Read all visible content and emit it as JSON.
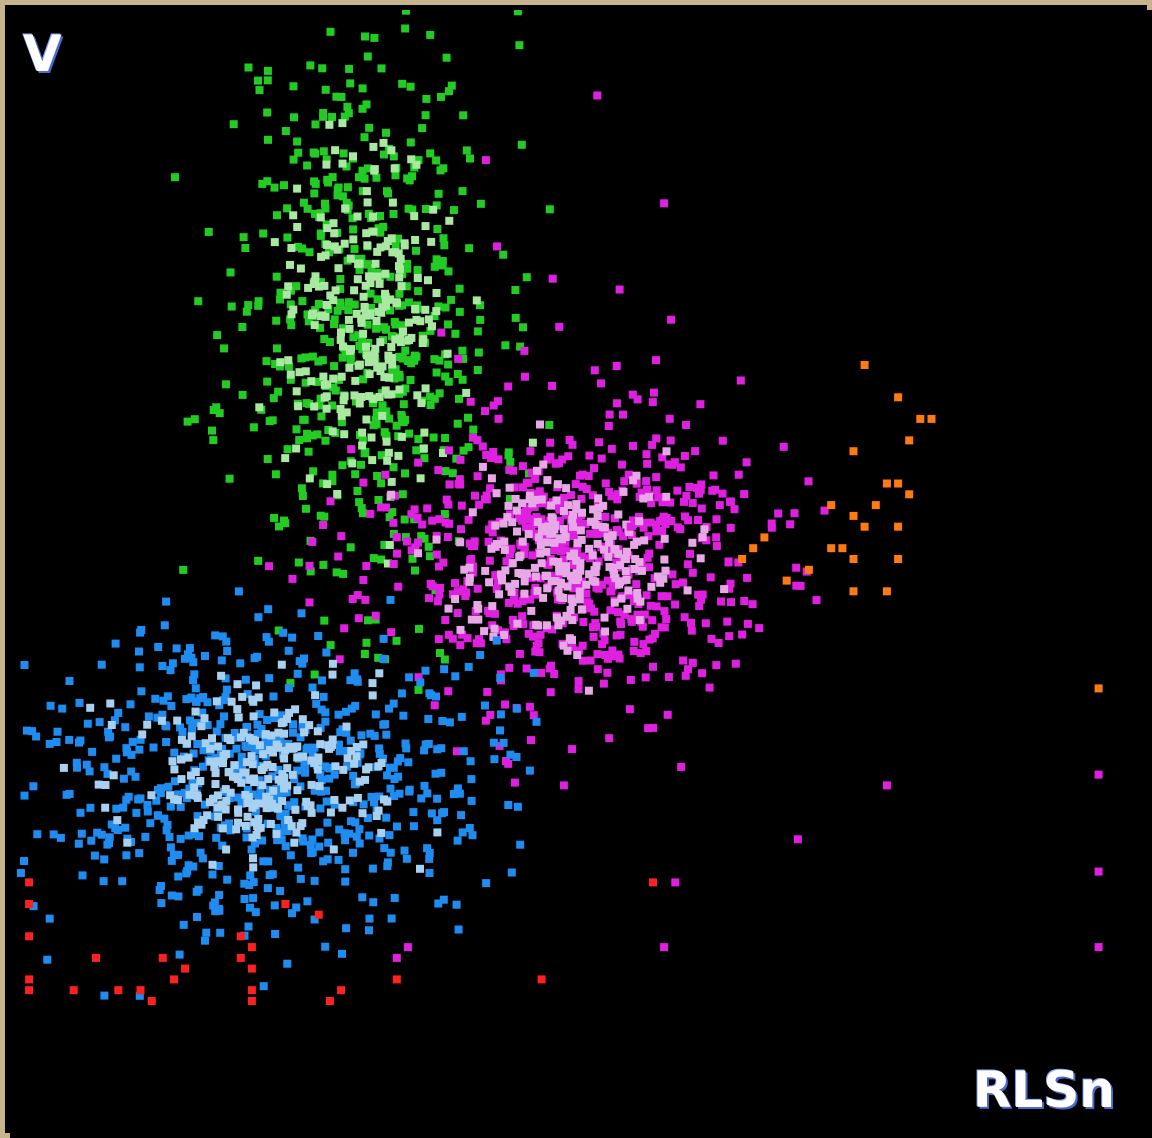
{
  "chart_data": {
    "type": "scatter",
    "title": "",
    "xlabel": "RLSn",
    "ylabel": "V",
    "xlim": [
      0,
      100
    ],
    "ylim": [
      0,
      100
    ],
    "grid": false,
    "legend": "none",
    "background": "#000000",
    "series": [
      {
        "color": "#22cc22",
        "core_color": "#a8e8a0",
        "pattern": "cloud",
        "center": [
          31,
          73
        ],
        "spread": [
          6,
          14
        ],
        "count": 520,
        "core_fraction": 0.45,
        "seed": 11
      },
      {
        "color": "#e020e0",
        "core_color": "#e8a8e8",
        "pattern": "cloud",
        "center": [
          49,
          50
        ],
        "spread": [
          9,
          7
        ],
        "count": 620,
        "core_fraction": 0.4,
        "seed": 23
      },
      {
        "color": "#1e8cf0",
        "core_color": "#a8d0f0",
        "pattern": "cloud",
        "center": [
          22,
          30
        ],
        "spread": [
          10,
          7
        ],
        "count": 620,
        "core_fraction": 0.4,
        "seed": 37
      },
      {
        "color": "#ff7a10",
        "pattern": "points",
        "points": [
          [
            76,
            68
          ],
          [
            79,
            65
          ],
          [
            81,
            63
          ],
          [
            82,
            63
          ],
          [
            80,
            61
          ],
          [
            75,
            60
          ],
          [
            78,
            57
          ],
          [
            79,
            57
          ],
          [
            80,
            56
          ],
          [
            77,
            55
          ],
          [
            73,
            55
          ],
          [
            75,
            54
          ],
          [
            76,
            53
          ],
          [
            79,
            53
          ],
          [
            74,
            51
          ],
          [
            73,
            51
          ],
          [
            75,
            50
          ],
          [
            79,
            50
          ],
          [
            67,
            52
          ],
          [
            66,
            51
          ],
          [
            65,
            50
          ],
          [
            69,
            48
          ],
          [
            78,
            47
          ],
          [
            75,
            47
          ],
          [
            71,
            49
          ],
          [
            97,
            38
          ]
        ]
      },
      {
        "color": "#ff2020",
        "pattern": "points",
        "points": [
          [
            1,
            20
          ],
          [
            1,
            18
          ],
          [
            1,
            15
          ],
          [
            1,
            11
          ],
          [
            1,
            10
          ],
          [
            5,
            10
          ],
          [
            7,
            13
          ],
          [
            9,
            10
          ],
          [
            11,
            10
          ],
          [
            12,
            9
          ],
          [
            13,
            13
          ],
          [
            14,
            11
          ],
          [
            15,
            12
          ],
          [
            20,
            15
          ],
          [
            20,
            13
          ],
          [
            21,
            14
          ],
          [
            21,
            12
          ],
          [
            21,
            10
          ],
          [
            21,
            9
          ],
          [
            24,
            18
          ],
          [
            27,
            17
          ],
          [
            28,
            9
          ],
          [
            29,
            10
          ],
          [
            34,
            11
          ],
          [
            47,
            11
          ],
          [
            57,
            20
          ]
        ]
      },
      {
        "color": "#e020e0",
        "pattern": "points",
        "points": [
          [
            52,
            93
          ],
          [
            42,
            87
          ],
          [
            58,
            83
          ],
          [
            43,
            79
          ],
          [
            48,
            76
          ],
          [
            54,
            75
          ],
          [
            38,
            71
          ],
          [
            44,
            66
          ],
          [
            46,
            60
          ],
          [
            55,
            53
          ],
          [
            63,
            55
          ],
          [
            64,
            46
          ],
          [
            57,
            40
          ],
          [
            65,
            43
          ],
          [
            42,
            35
          ],
          [
            44,
            31
          ],
          [
            49,
            29
          ],
          [
            59,
            20
          ],
          [
            70,
            24
          ],
          [
            78,
            29
          ],
          [
            97,
            30
          ],
          [
            97,
            21
          ],
          [
            97,
            14
          ],
          [
            58,
            14
          ],
          [
            34,
            13
          ],
          [
            35,
            14
          ]
        ]
      }
    ]
  }
}
